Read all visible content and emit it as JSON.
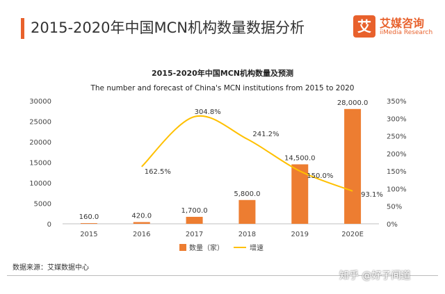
{
  "header": {
    "title": "2015-2020年中国MCN机构数量数据分析",
    "logo_name": "艾媒咨询",
    "logo_sub": "iiMedia Research",
    "logo_glyph": "艾"
  },
  "source": "数据来源：艾媒数据中心",
  "watermark": "知乎 @好子间道",
  "colors": {
    "accent": "#e8612c",
    "bar": "#ed7d31",
    "line": "#ffc000"
  },
  "chart_data": {
    "type": "bar",
    "title": "2015-2020年中国MCN机构数量及预测",
    "subtitle": "The number and forecast of China's MCN institutions from 2015 to 2020",
    "categories": [
      "2015",
      "2016",
      "2017",
      "2018",
      "2019",
      "2020E"
    ],
    "series": [
      {
        "name": "数量（家）",
        "type": "bar",
        "axis": "left",
        "values": [
          160,
          420,
          1700,
          5800,
          14500,
          28000
        ],
        "labels": [
          "160.0",
          "420.0",
          "1,700.0",
          "5,800.0",
          "14,500.0",
          "28,000.0"
        ]
      },
      {
        "name": "增速",
        "type": "line",
        "axis": "right",
        "values": [
          null,
          162.5,
          304.8,
          241.2,
          150.0,
          93.1
        ],
        "labels": [
          "",
          "162.5%",
          "304.8%",
          "241.2%",
          "150.0%",
          "93.1%"
        ]
      }
    ],
    "y_left": {
      "range": [
        0,
        30000
      ],
      "ticks": [
        "0",
        "5000",
        "10000",
        "15000",
        "20000",
        "25000",
        "30000"
      ]
    },
    "y_right": {
      "range": [
        0,
        350
      ],
      "ticks": [
        "0%",
        "50%",
        "100%",
        "150%",
        "200%",
        "250%",
        "300%",
        "350%"
      ]
    },
    "grid": false,
    "legend": "bottom"
  }
}
